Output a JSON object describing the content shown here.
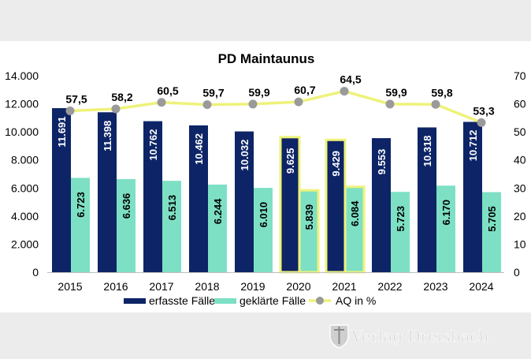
{
  "chart_data": {
    "type": "bar",
    "title": "PD Maintaunus",
    "categories": [
      "2015",
      "2016",
      "2017",
      "2018",
      "2019",
      "2020",
      "2021",
      "2022",
      "2023",
      "2024"
    ],
    "series": [
      {
        "name": "erfasste Fälle",
        "axis": "left",
        "kind": "bar",
        "color": "#0d2466",
        "values": [
          11691,
          11398,
          10762,
          10462,
          10032,
          9625,
          9429,
          9553,
          10318,
          10712
        ],
        "labels": [
          "11.691",
          "11.398",
          "10.762",
          "10.462",
          "10.032",
          "9.625",
          "9.429",
          "9.553",
          "10.318",
          "10.712"
        ]
      },
      {
        "name": "geklärte Fälle",
        "axis": "left",
        "kind": "bar",
        "color": "#7de0c4",
        "values": [
          6723,
          6636,
          6513,
          6244,
          6010,
          5839,
          6084,
          5723,
          6170,
          5705
        ],
        "labels": [
          "6.723",
          "6.636",
          "6.513",
          "6.244",
          "6.010",
          "5.839",
          "6.084",
          "5.723",
          "6.170",
          "5.705"
        ]
      },
      {
        "name": "AQ in %",
        "axis": "right",
        "kind": "line",
        "color": "#eef27a",
        "marker_color": "#9a9a9a",
        "values": [
          57.5,
          58.2,
          60.5,
          59.7,
          59.9,
          60.7,
          64.5,
          59.9,
          59.8,
          53.3
        ],
        "labels": [
          "57,5",
          "58,2",
          "60,5",
          "59,7",
          "59,9",
          "60,7",
          "64,5",
          "59,9",
          "59,8",
          "53,3"
        ]
      }
    ],
    "highlighted_categories": [
      "2020",
      "2021"
    ],
    "highlight_color": "#eef27a",
    "left_axis": {
      "ylim": [
        0,
        14000
      ],
      "ticks": [
        0,
        2000,
        4000,
        6000,
        8000,
        10000,
        12000,
        14000
      ],
      "tick_labels": [
        "0",
        "2.000",
        "4.000",
        "6.000",
        "8.000",
        "10.000",
        "12.000",
        "14.000"
      ]
    },
    "right_axis": {
      "ylim": [
        0,
        70
      ],
      "ticks": [
        0,
        10,
        20,
        30,
        40,
        50,
        60,
        70
      ],
      "tick_labels": [
        "0",
        "10",
        "20",
        "30",
        "40",
        "50",
        "60",
        "70"
      ]
    },
    "grid": false,
    "legend": "bottom"
  },
  "watermark": {
    "text": "Verlag Dreisbach"
  }
}
